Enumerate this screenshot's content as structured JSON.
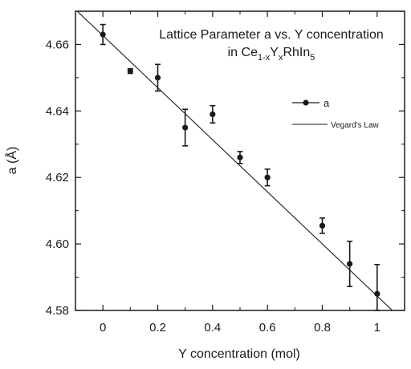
{
  "chart_data": {
    "type": "scatter",
    "title_line1": "Lattice Parameter a  vs. Y concentration",
    "title_line2": {
      "pre": "in Ce",
      "sub1": "1-x",
      "mid1": "Y",
      "sub2": "x",
      "mid2": "RhIn",
      "sub3": "5"
    },
    "xlabel": "Y concentration   (mol)",
    "ylabel": "a  (Å)",
    "xlim": [
      -0.1,
      1.1
    ],
    "ylim": [
      4.58,
      4.67
    ],
    "x_ticks": [
      0,
      0.2,
      0.4,
      0.6,
      0.8,
      1
    ],
    "x_tick_labels": [
      "0",
      "0.2",
      "0.4",
      "0.6",
      "0.8",
      "1"
    ],
    "y_ticks": [
      4.58,
      4.6,
      4.62,
      4.64,
      4.66
    ],
    "y_tick_labels": [
      "4.58",
      "4.60",
      "4.62",
      "4.64",
      "4.66"
    ],
    "grid": false,
    "legend_position": "upper-right",
    "series": [
      {
        "name": "a",
        "kind": "points-with-errorbars",
        "x": [
          0,
          0.1,
          0.2,
          0.3,
          0.4,
          0.5,
          0.6,
          0.8,
          0.9,
          1.0
        ],
        "y": [
          4.663,
          4.652,
          4.65,
          4.635,
          4.639,
          4.626,
          4.62,
          4.6055,
          4.594,
          4.585
        ],
        "err": [
          0.003,
          0.0007,
          0.004,
          0.0055,
          0.0026,
          0.0018,
          0.0025,
          0.0023,
          0.0068,
          0.0088
        ]
      },
      {
        "name": "Vegard's Law",
        "kind": "line",
        "x": [
          -0.1,
          1.1
        ],
        "y": [
          4.6705,
          4.5765
        ]
      }
    ]
  }
}
